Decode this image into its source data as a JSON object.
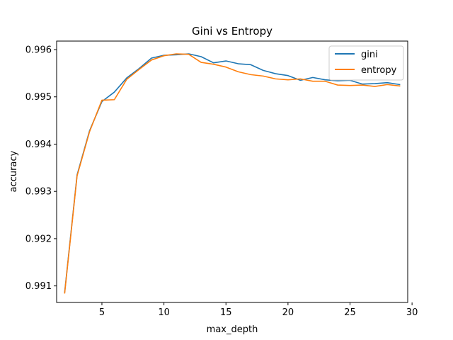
{
  "chart_data": {
    "type": "line",
    "title": "Gini vs Entropy",
    "xlabel": "max_depth",
    "ylabel": "accuracy",
    "xlim": [
      1.35,
      29.65
    ],
    "ylim": [
      0.99065,
      0.99618
    ],
    "xticks": [
      5,
      10,
      15,
      20,
      25,
      30
    ],
    "xtick_labels": [
      "5",
      "10",
      "15",
      "20",
      "25",
      "30"
    ],
    "yticks": [
      0.991,
      0.992,
      0.993,
      0.994,
      0.995,
      0.996
    ],
    "ytick_labels": [
      "0.991",
      "0.992",
      "0.993",
      "0.994",
      "0.995",
      "0.996"
    ],
    "grid": false,
    "legend_position": "top-right",
    "x": [
      2,
      3,
      4,
      5,
      6,
      7,
      8,
      9,
      10,
      11,
      12,
      13,
      14,
      15,
      16,
      17,
      18,
      19,
      20,
      21,
      22,
      23,
      24,
      25,
      26,
      27,
      28,
      29
    ],
    "series": [
      {
        "name": "gini",
        "color": "#1f77b4",
        "values": [
          0.99087,
          0.99335,
          0.99428,
          0.9949,
          0.9951,
          0.9954,
          0.9956,
          0.99582,
          0.99588,
          0.99589,
          0.99591,
          0.99585,
          0.99572,
          0.99576,
          0.9957,
          0.99568,
          0.99556,
          0.99549,
          0.99545,
          0.99535,
          0.99541,
          0.99536,
          0.99534,
          0.99535,
          0.99527,
          0.99528,
          0.9953,
          0.99526
        ]
      },
      {
        "name": "entropy",
        "color": "#ff7f0e",
        "values": [
          0.99085,
          0.99333,
          0.99426,
          0.99493,
          0.99494,
          0.99537,
          0.99558,
          0.99578,
          0.99587,
          0.99591,
          0.9959,
          0.99573,
          0.99569,
          0.99563,
          0.99553,
          0.99547,
          0.99544,
          0.99538,
          0.99536,
          0.99538,
          0.99533,
          0.99533,
          0.99525,
          0.99524,
          0.99525,
          0.99522,
          0.99526,
          0.99523
        ]
      }
    ]
  }
}
